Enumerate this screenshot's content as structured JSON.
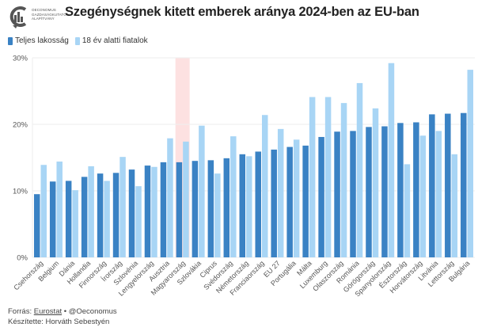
{
  "header": {
    "logo_text": [
      "OECONOMUS",
      "GAZDASÁGKUTATÓ",
      "ALAPÍTVÁNY"
    ],
    "title": "Szegénységnek kitett emberek aránya 2024-ben az EU-ban"
  },
  "footer": {
    "source_label": "Forrás:",
    "source_link": "Eurostat",
    "separator": "•",
    "handle": "@Oeconomus",
    "author": "Készítette: Horváth Sebestyén"
  },
  "colors": {
    "series_total": "#3a82c4",
    "series_youth": "#a8d5f5",
    "highlight": "#fde1e1",
    "grid": "#eeeeee"
  },
  "chart_data": {
    "type": "bar",
    "title": "Szegénységnek kitett emberek aránya 2024-ben az EU-ban",
    "xlabel": "",
    "ylabel": "",
    "ylim": [
      0,
      30
    ],
    "yticks": [
      0,
      10,
      20,
      30
    ],
    "ytick_labels": [
      "0%",
      "10%",
      "20%",
      "30%"
    ],
    "grid": true,
    "legend_position": "top-left",
    "highlight_category": "Magyarország",
    "categories": [
      "Csehország",
      "Belgium",
      "Dánia",
      "Hollandia",
      "Finnország",
      "Írország",
      "Szlovénia",
      "Lengyelország",
      "Ausztria",
      "Magyarország",
      "Szlovákia",
      "Ciprus",
      "Svédország",
      "Németország",
      "Franciaország",
      "EU 27",
      "Portugália",
      "Málta",
      "Luxemburg",
      "Olaszország",
      "Románia",
      "Görögország",
      "Spanyolország",
      "Észtország",
      "Horvátország",
      "Litvánia",
      "Lettország",
      "Bulgária"
    ],
    "series": [
      {
        "name": "Teljes lakosság",
        "values": [
          9.5,
          11.4,
          11.5,
          12.1,
          12.6,
          12.7,
          13.2,
          13.8,
          14.3,
          14.3,
          14.5,
          14.6,
          14.9,
          15.5,
          15.9,
          16.2,
          16.6,
          16.8,
          18.1,
          18.9,
          19.0,
          19.6,
          19.7,
          20.2,
          20.3,
          21.5,
          21.6,
          21.7
        ]
      },
      {
        "name": "18 év alatti fiatalok",
        "values": [
          13.9,
          14.4,
          10.1,
          13.7,
          11.5,
          15.1,
          10.7,
          13.6,
          17.9,
          17.4,
          19.8,
          12.6,
          18.2,
          15.2,
          21.4,
          19.3,
          17.7,
          24.1,
          24.1,
          23.2,
          26.2,
          22.4,
          29.2,
          14.0,
          18.3,
          19.0,
          15.5,
          28.2
        ]
      }
    ]
  }
}
